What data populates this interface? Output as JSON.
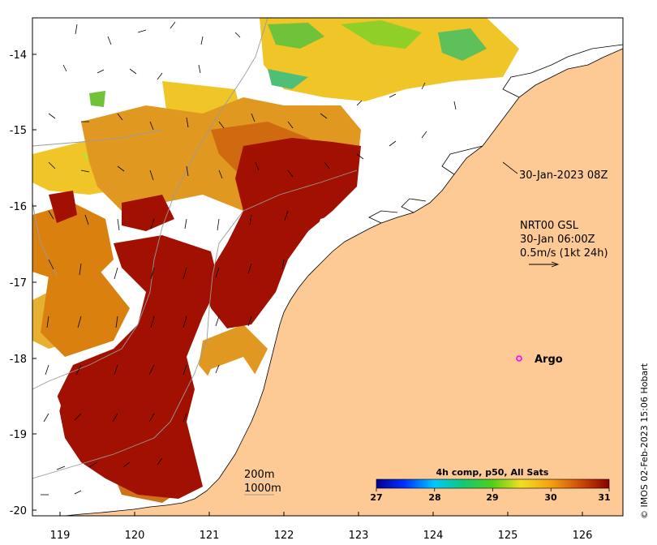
{
  "map": {
    "xticks": [
      "119",
      "120",
      "121",
      "122",
      "123",
      "124",
      "125",
      "126"
    ],
    "yticks": [
      "-14",
      "-15",
      "-16",
      "-17",
      "-18",
      "-19",
      "-20"
    ],
    "annotations": {
      "satellite_time": "30-Jan-2023 08Z",
      "current_product": "NRT00 GSL",
      "current_time": "30-Jan 06:00Z",
      "current_scale": "0.5m/s (1kt 24h)",
      "argo_label": "Argo",
      "contour_200": "200m",
      "contour_1000": "1000m"
    },
    "colorbar": {
      "title": "4h comp, p50, All Sats",
      "ticks": [
        "27",
        "28",
        "29",
        "30",
        "31"
      ]
    },
    "credit": "© IMOS 02-Feb-2023 15:06 Hobart",
    "colors": {
      "land": "#fdc994",
      "sst_hot": "#a11000",
      "sst_warm": "#d9800e",
      "sst_mid": "#f0c528",
      "sst_cool": "#8fcf28",
      "argo_marker": "#ff00ff"
    }
  }
}
